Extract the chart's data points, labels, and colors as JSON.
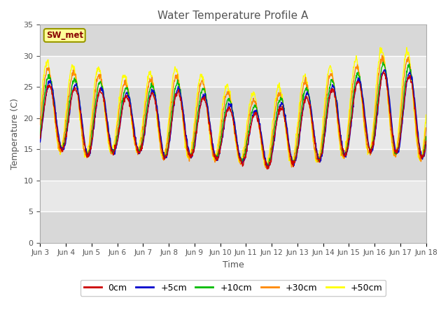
{
  "title": "Water Temperature Profile A",
  "xlabel": "Time",
  "ylabel": "Temperature (C)",
  "ylim": [
    0,
    35
  ],
  "xlim_days": [
    3,
    18
  ],
  "line_colors": {
    "0cm": "#cc0000",
    "+5cm": "#0000cc",
    "+10cm": "#00bb00",
    "+30cm": "#ff8800",
    "+50cm": "#ffff00"
  },
  "line_labels": [
    "0cm",
    "+5cm",
    "+10cm",
    "+30cm",
    "+50cm"
  ],
  "sw_met_label": "SW_met",
  "sw_met_bg": "#ffff99",
  "sw_met_fg": "#880000",
  "sw_met_border": "#999900",
  "bg_color": "#ffffff",
  "plot_bg_color": "#e0e0e0",
  "band_colors": [
    "#d8d8d8",
    "#e8e8e8"
  ],
  "grid_color": "#ffffff",
  "title_color": "#555555",
  "yticks": [
    0,
    5,
    10,
    15,
    20,
    25,
    30,
    35
  ],
  "date_labels": [
    "Jun 3",
    "Jun 4",
    "Jun 5",
    "Jun 6",
    "Jun 7",
    "Jun 8",
    "Jun 9",
    "Jun 10",
    "Jun 11",
    "Jun 12",
    "Jun 13",
    "Jun 14",
    "Jun 15",
    "Jun 16",
    "Jun 17",
    "Jun 18"
  ],
  "date_positions": [
    3,
    4,
    5,
    6,
    7,
    8,
    9,
    10,
    11,
    12,
    13,
    14,
    15,
    16,
    17,
    18
  ],
  "line_width": 1.0
}
